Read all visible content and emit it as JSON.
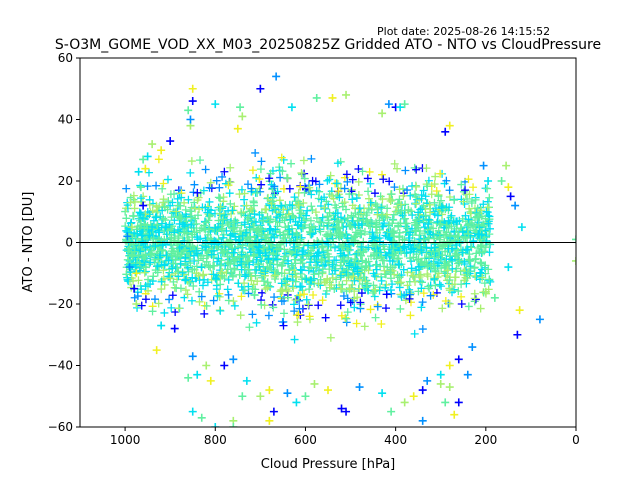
{
  "plot_date": "Plot date: 2025-08-26 14:15:52",
  "chart_data": {
    "type": "scatter",
    "title": "S-O3M_GOME_VOD_XX_M03_20250825Z Gridded ATO - NTO vs CloudPressure",
    "xlabel": "Cloud Pressure [hPa]",
    "ylabel": "ATO - NTO [DU]",
    "xlim": [
      1100,
      0
    ],
    "ylim": [
      -60,
      60
    ],
    "x_ticks": [
      1000,
      800,
      600,
      400,
      200,
      0
    ],
    "y_ticks": [
      -60,
      -40,
      -20,
      0,
      20,
      40,
      60
    ],
    "x_tick_labels": [
      "1000",
      "800",
      "600",
      "400",
      "200",
      "0"
    ],
    "y_tick_labels": [
      "−60",
      "−40",
      "−20",
      "0",
      "20",
      "40",
      "60"
    ],
    "reference_line": {
      "y": 0,
      "color": "#000000"
    },
    "marker": "+",
    "colormap": [
      "#0000ff",
      "#0090ff",
      "#00e0f0",
      "#60f0a0",
      "#a8f070",
      "#f0f020"
    ],
    "dense_cloud": {
      "x_range": [
        1000,
        190
      ],
      "y_center": 0,
      "y_spread": [
        -27,
        32
      ],
      "note_color_core": "#60f0a0"
    },
    "series": [
      {
        "values": [
          [
            990,
            -2
          ],
          [
            985,
            5
          ],
          [
            975,
            -10
          ],
          [
            960,
            12
          ],
          [
            990,
            -8
          ],
          [
            950,
            28
          ],
          [
            965,
            18
          ],
          [
            975,
            -20
          ],
          [
            955,
            24
          ],
          [
            980,
            -15
          ],
          [
            995,
            2
          ],
          [
            970,
            23
          ],
          [
            860,
            43
          ],
          [
            855,
            38
          ],
          [
            850,
            50
          ],
          [
            850,
            46
          ],
          [
            855,
            40
          ],
          [
            800,
            45
          ],
          [
            745,
            44
          ],
          [
            740,
            41
          ],
          [
            750,
            37
          ],
          [
            700,
            50
          ],
          [
            665,
            54
          ],
          [
            630,
            44
          ],
          [
            575,
            47
          ],
          [
            510,
            48
          ],
          [
            540,
            47
          ],
          [
            400,
            44
          ],
          [
            415,
            45
          ],
          [
            390,
            44
          ],
          [
            380,
            45
          ],
          [
            430,
            42
          ],
          [
            280,
            38
          ],
          [
            290,
            36
          ],
          [
            205,
            25
          ],
          [
            195,
            20
          ],
          [
            165,
            20
          ],
          [
            155,
            25
          ],
          [
            150,
            18
          ],
          [
            145,
            15
          ],
          [
            135,
            12
          ],
          [
            120,
            5
          ],
          [
            0,
            1
          ],
          [
            0,
            -6
          ],
          [
            125,
            -22
          ],
          [
            130,
            -30
          ],
          [
            80,
            -25
          ],
          [
            150,
            -8
          ],
          [
            180,
            -18
          ],
          [
            200,
            -16
          ],
          [
            930,
            -35
          ],
          [
            890,
            -28
          ],
          [
            850,
            -37
          ],
          [
            840,
            -43
          ],
          [
            860,
            -44
          ],
          [
            820,
            -40
          ],
          [
            810,
            -45
          ],
          [
            780,
            -40
          ],
          [
            760,
            -38
          ],
          [
            730,
            -45
          ],
          [
            740,
            -50
          ],
          [
            700,
            -50
          ],
          [
            680,
            -48
          ],
          [
            670,
            -55
          ],
          [
            640,
            -49
          ],
          [
            620,
            -52
          ],
          [
            600,
            -50
          ],
          [
            580,
            -46
          ],
          [
            550,
            -48
          ],
          [
            520,
            -54
          ],
          [
            480,
            -47
          ],
          [
            430,
            -49
          ],
          [
            410,
            -55
          ],
          [
            380,
            -52
          ],
          [
            360,
            -50
          ],
          [
            340,
            -48
          ],
          [
            330,
            -45
          ],
          [
            300,
            -43
          ],
          [
            290,
            -52
          ],
          [
            280,
            -47
          ],
          [
            270,
            -56
          ],
          [
            260,
            -52
          ],
          [
            240,
            -43
          ],
          [
            850,
            -55
          ],
          [
            830,
            -57
          ],
          [
            760,
            -58
          ],
          [
            680,
            -58
          ],
          [
            510,
            -55
          ],
          [
            340,
            -58
          ],
          [
            800,
            -60
          ],
          [
            760,
            -60
          ],
          [
            300,
            -46
          ],
          [
            280,
            -40
          ],
          [
            260,
            -38
          ],
          [
            230,
            -34
          ],
          [
            920,
            -27
          ],
          [
            960,
            27
          ],
          [
            940,
            32
          ],
          [
            920,
            30
          ],
          [
            900,
            33
          ]
        ]
      }
    ]
  }
}
